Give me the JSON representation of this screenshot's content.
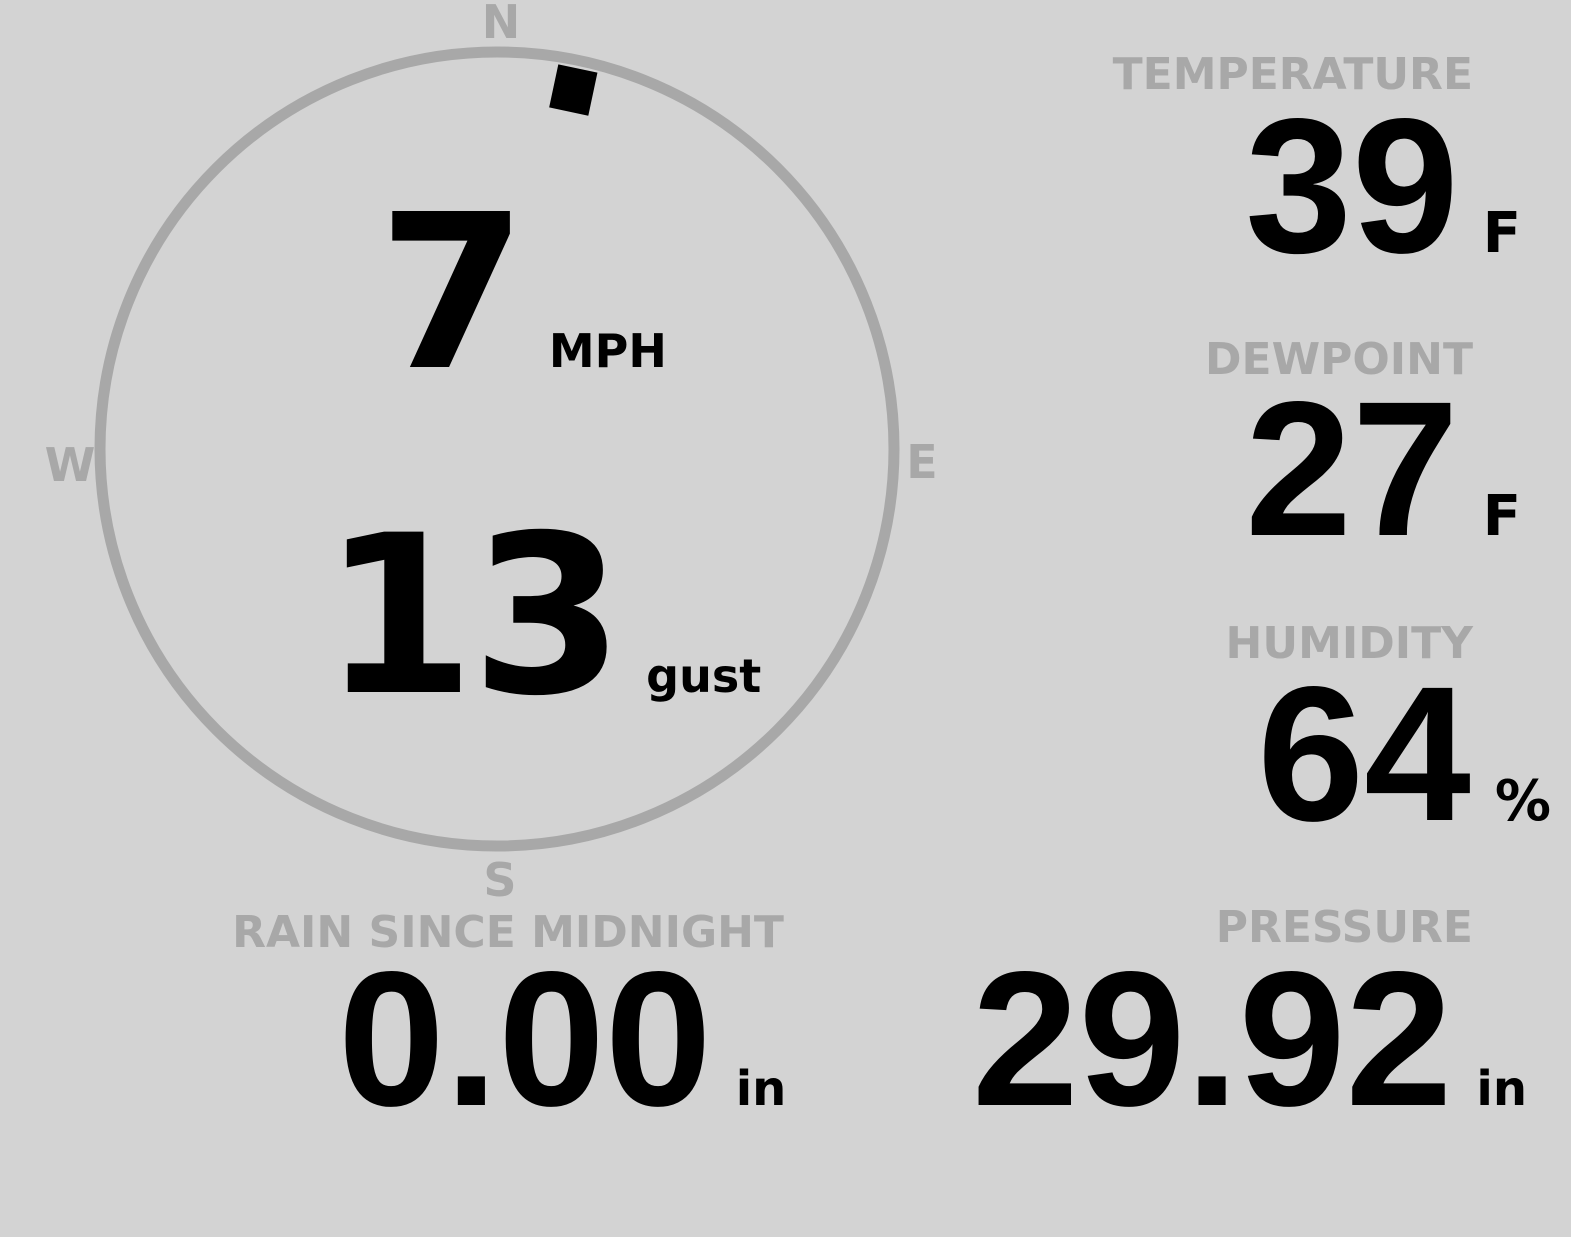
{
  "wind": {
    "speed": "7",
    "speed_unit": "MPH",
    "gust": "13",
    "gust_unit": "gust",
    "direction_degrees": 12,
    "compass": {
      "north": "N",
      "east": "E",
      "south": "S",
      "west": "W"
    }
  },
  "temperature": {
    "label": "TEMPERATURE",
    "value": "39",
    "unit": "F"
  },
  "dewpoint": {
    "label": "DEWPOINT",
    "value": "27",
    "unit": "F"
  },
  "humidity": {
    "label": "HUMIDITY",
    "value": "64",
    "unit": "%"
  },
  "pressure": {
    "label": "PRESSURE",
    "value": "29.92",
    "unit": "in"
  },
  "rain": {
    "label": "RAIN SINCE MIDNIGHT",
    "value": "0.00",
    "unit": "in"
  },
  "colors": {
    "background": "#d3d3d3",
    "label": "#a8a8a8",
    "value": "#000000"
  }
}
